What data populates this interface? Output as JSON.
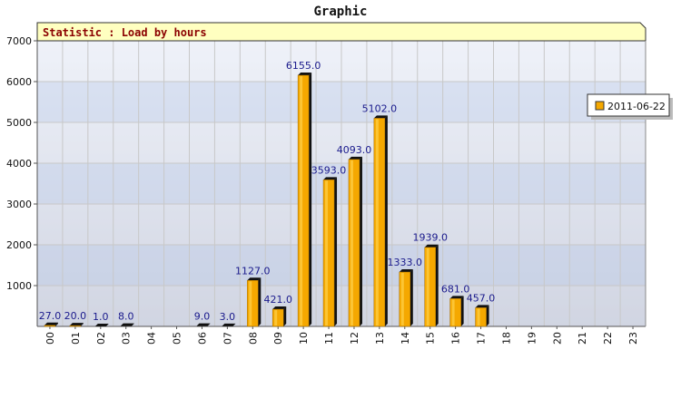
{
  "chart_data": {
    "type": "bar",
    "title": "Graphic",
    "subtitle": "Statistic : Load by hours",
    "categories": [
      "00",
      "01",
      "02",
      "03",
      "04",
      "05",
      "06",
      "07",
      "08",
      "09",
      "10",
      "11",
      "12",
      "13",
      "14",
      "15",
      "16",
      "17",
      "18",
      "19",
      "20",
      "21",
      "22",
      "23"
    ],
    "series": [
      {
        "name": "2011-06-22",
        "values": [
          27,
          20,
          1,
          8,
          null,
          null,
          9,
          3,
          1127,
          421,
          6155,
          3593,
          4093,
          5102,
          1333,
          1939,
          681,
          457,
          null,
          null,
          null,
          null,
          null,
          null
        ],
        "labels": [
          "27.0",
          "20.0",
          "1.0",
          "8.0",
          "",
          "",
          "9.0",
          "3.0",
          "1127.0",
          "421.0",
          "6155.0",
          "3593.0",
          "4093.0",
          "5102.0",
          "1333.0",
          "1939.0",
          "681.0",
          "457.0",
          "",
          "",
          "",
          "",
          "",
          ""
        ]
      }
    ],
    "yticks": [
      "1000",
      "2000",
      "3000",
      "4000",
      "5000",
      "6000",
      "7000"
    ],
    "ylim": [
      0,
      7000
    ],
    "xlabel": "",
    "ylabel": "",
    "grid": true,
    "legend_position": "right",
    "colors": {
      "bar": "#f5a800",
      "bar_top": "#ffd24a",
      "bar_shadow": "#111111",
      "value_label": "#1a1a8c",
      "subtitle_text": "#8b0000",
      "subtitle_bg": "#ffffc0",
      "band_a": "#dfe8f8",
      "band_b": "#c4d3ee",
      "grid": "#c8c8c8"
    }
  }
}
